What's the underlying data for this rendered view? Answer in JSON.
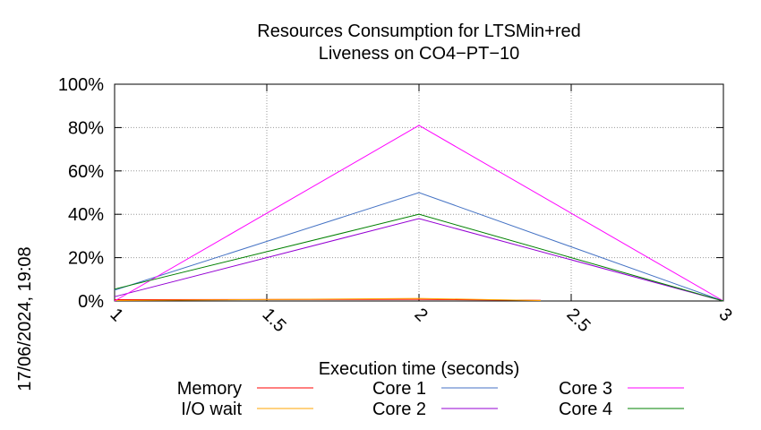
{
  "chart_data": {
    "type": "line",
    "title_lines": [
      "Resources Consumption for LTSMin+red",
      "Liveness on CO4−PT−10"
    ],
    "xlabel": "Execution time (seconds)",
    "ylabel": "",
    "timestamp": "17/06/2024, 19:08",
    "x_ticks": [
      "1",
      "1.5",
      "2",
      "2.5",
      "3"
    ],
    "y_ticks": [
      "0%",
      "20%",
      "40%",
      "60%",
      "80%",
      "100%"
    ],
    "xlim": [
      1,
      3
    ],
    "ylim": [
      0,
      100
    ],
    "grid": true,
    "legend_position": "bottom",
    "series": [
      {
        "name": "Memory",
        "color": "#ff0000",
        "x": [
          1,
          2,
          2.4
        ],
        "values": [
          0.6,
          0.8,
          0.3
        ]
      },
      {
        "name": "I/O wait",
        "color": "#ffa500",
        "x": [
          1,
          2,
          2.4
        ],
        "values": [
          0.2,
          1.2,
          0.2
        ]
      },
      {
        "name": "Core 1",
        "color": "#4472c4",
        "x": [
          1,
          2,
          3
        ],
        "values": [
          5,
          50,
          0
        ]
      },
      {
        "name": "Core 2",
        "color": "#9400d3",
        "x": [
          1,
          2,
          3
        ],
        "values": [
          2,
          38,
          0
        ]
      },
      {
        "name": "Core 3",
        "color": "#ff00ff",
        "x": [
          1,
          2,
          3
        ],
        "values": [
          0,
          81,
          0
        ]
      },
      {
        "name": "Core 4",
        "color": "#008000",
        "x": [
          1,
          2,
          3
        ],
        "values": [
          5.5,
          40,
          0
        ]
      }
    ]
  }
}
